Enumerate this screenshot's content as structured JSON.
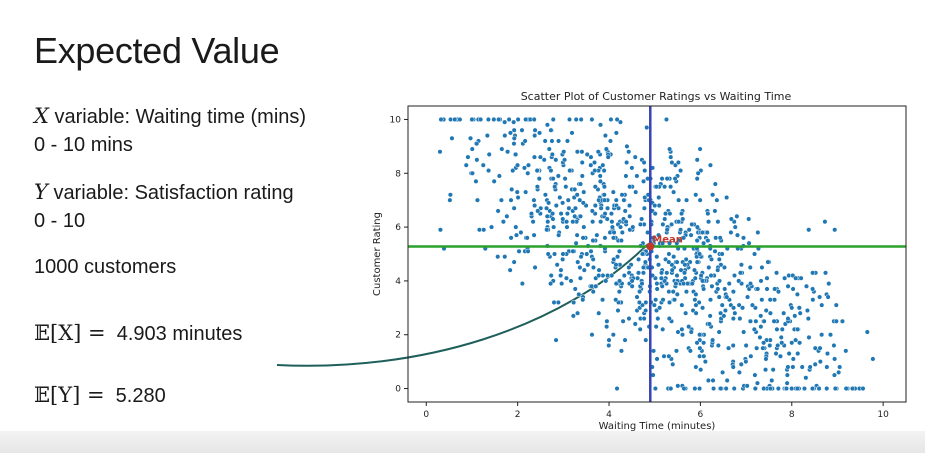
{
  "slide": {
    "title": "Expected Value",
    "x_var_symbol": "X",
    "x_var_label": "variable: Waiting time (mins)",
    "x_range": "0 - 10 mins",
    "y_var_symbol": "Y",
    "y_var_label": "variable: Satisfaction rating",
    "y_range": "0 - 10",
    "count": "1000 customers",
    "ex_symbol": "𝔼",
    "ex_arg": "[X] =",
    "ex_value": "4.903 minutes",
    "ey_symbol": "𝔼",
    "ey_arg": "[Y] =",
    "ey_value": "5.280"
  },
  "chart_data": {
    "type": "scatter",
    "title": "Scatter Plot of Customer Ratings vs Waiting Time",
    "xlabel": "Waiting Time (minutes)",
    "ylabel": "Customer Rating",
    "xlim": [
      -0.4,
      10.5
    ],
    "ylim": [
      -0.5,
      10.5
    ],
    "xticks": [
      0,
      2,
      4,
      6,
      8,
      10
    ],
    "yticks": [
      0,
      2,
      4,
      6,
      8,
      10
    ],
    "grid": false,
    "mean_x": 4.903,
    "mean_y": 5.28,
    "mean_label": "Mean",
    "point_count": 1000,
    "colors": {
      "points": "#1f77b4",
      "vline": "#3644b5",
      "hline": "#2ca02c",
      "mean_marker": "#c0392b",
      "arrow": "#1f5f5b"
    }
  }
}
